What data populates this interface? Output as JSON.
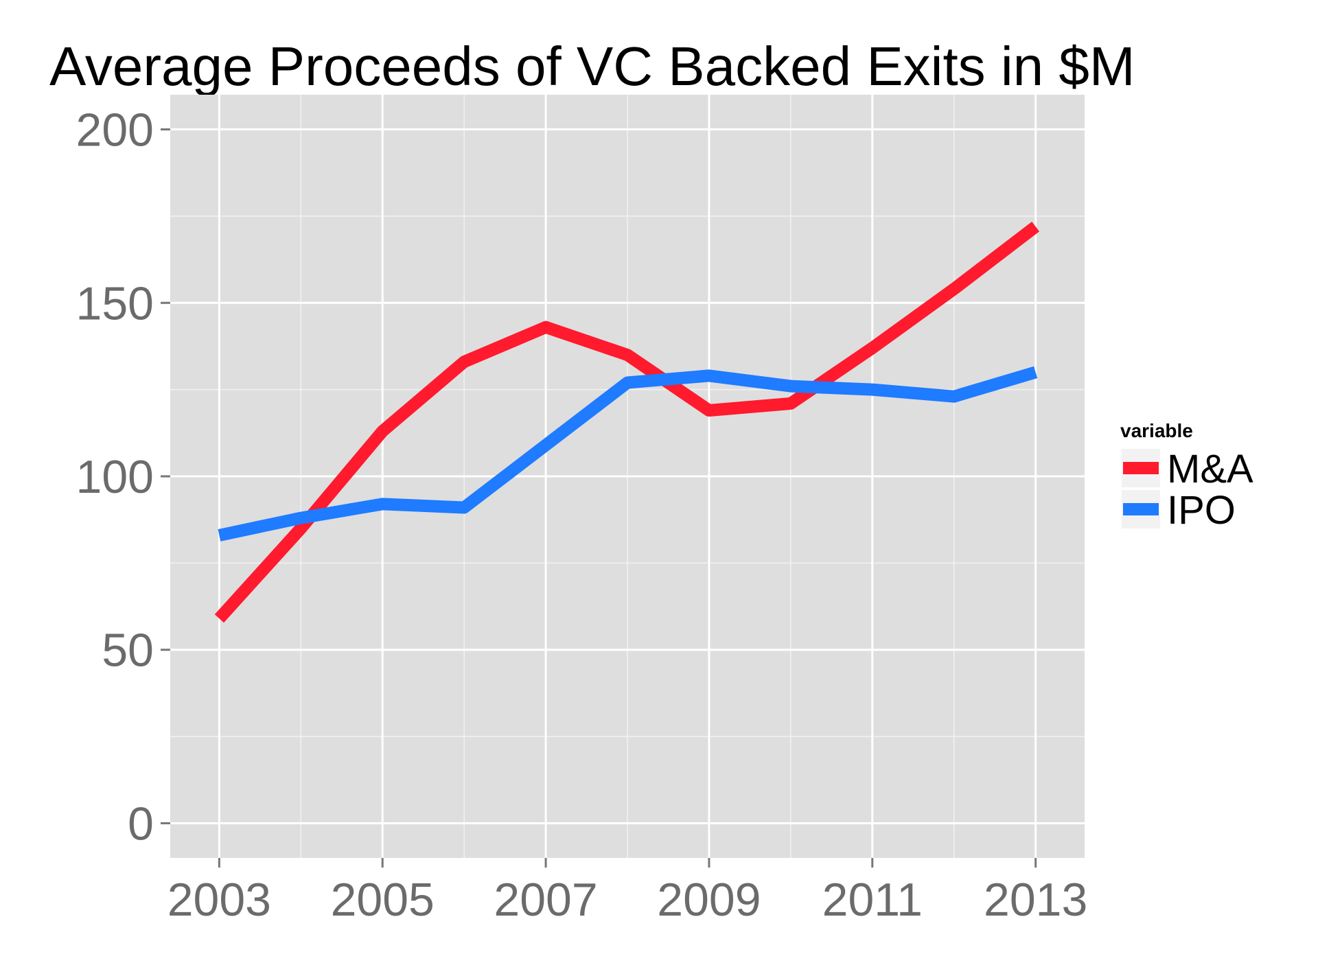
{
  "chart_data": {
    "type": "line",
    "title": "Average Proceeds of VC Backed Exits in $M",
    "xlabel": "",
    "ylabel": "",
    "x": [
      2003,
      2004,
      2005,
      2006,
      2007,
      2008,
      2009,
      2010,
      2011,
      2012,
      2013
    ],
    "x_ticks": [
      "2003",
      "2005",
      "2007",
      "2009",
      "2011",
      "2013"
    ],
    "y_ticks": [
      "0",
      "50",
      "100",
      "150",
      "200"
    ],
    "xlim": [
      2002.4,
      2013.6
    ],
    "ylim": [
      -10,
      210
    ],
    "grid": true,
    "legend": {
      "title": "variable",
      "position": "right"
    },
    "series": [
      {
        "name": "M&A",
        "color": "#ff1a2e",
        "values": [
          59,
          85,
          113,
          133,
          143,
          135,
          119,
          121,
          137,
          154,
          172
        ]
      },
      {
        "name": "IPO",
        "color": "#1f7bff",
        "values": [
          83,
          88,
          92,
          91,
          109,
          127,
          129,
          126,
          125,
          123,
          130
        ]
      }
    ]
  }
}
